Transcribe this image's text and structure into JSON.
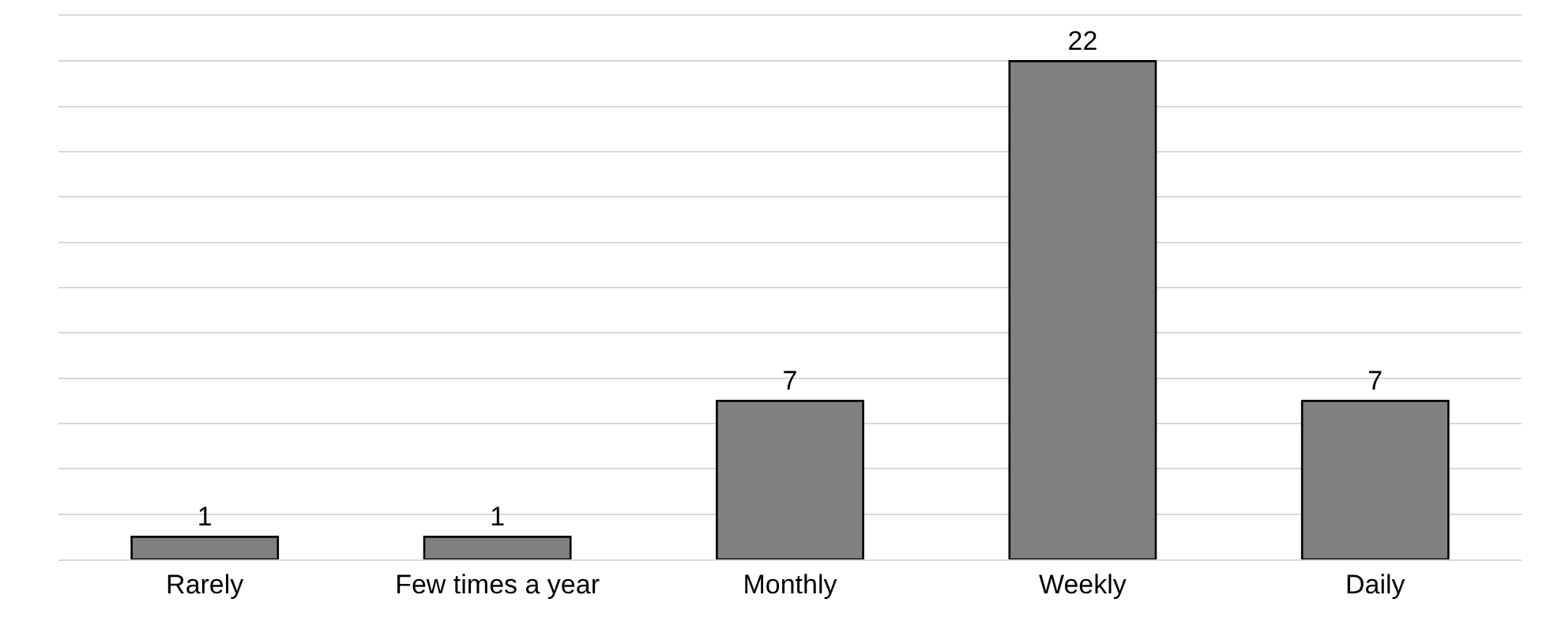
{
  "chart_data": {
    "type": "bar",
    "categories": [
      "Rarely",
      "Few times a year",
      "Monthly",
      "Weekly",
      "Daily"
    ],
    "values": [
      1,
      1,
      7,
      22,
      7
    ],
    "color": "#808080",
    "ylim": [
      0,
      24
    ],
    "yticks": [
      {
        "value": 0,
        "label": null
      },
      {
        "value": 2,
        "label": null
      },
      {
        "value": 4,
        "label": null
      },
      {
        "value": 6,
        "label": null
      },
      {
        "value": 8,
        "label": null
      },
      {
        "value": 10,
        "label": null
      },
      {
        "value": 12,
        "label": null
      },
      {
        "value": 14,
        "label": null
      },
      {
        "value": 16,
        "label": null
      },
      {
        "value": 18,
        "label": null
      },
      {
        "value": 20,
        "label": null
      },
      {
        "value": 22,
        "label": null
      },
      {
        "value": 24,
        "label": null
      }
    ],
    "tick_labels": "x",
    "grid": "y",
    "data_labels": true,
    "legend": false
  }
}
